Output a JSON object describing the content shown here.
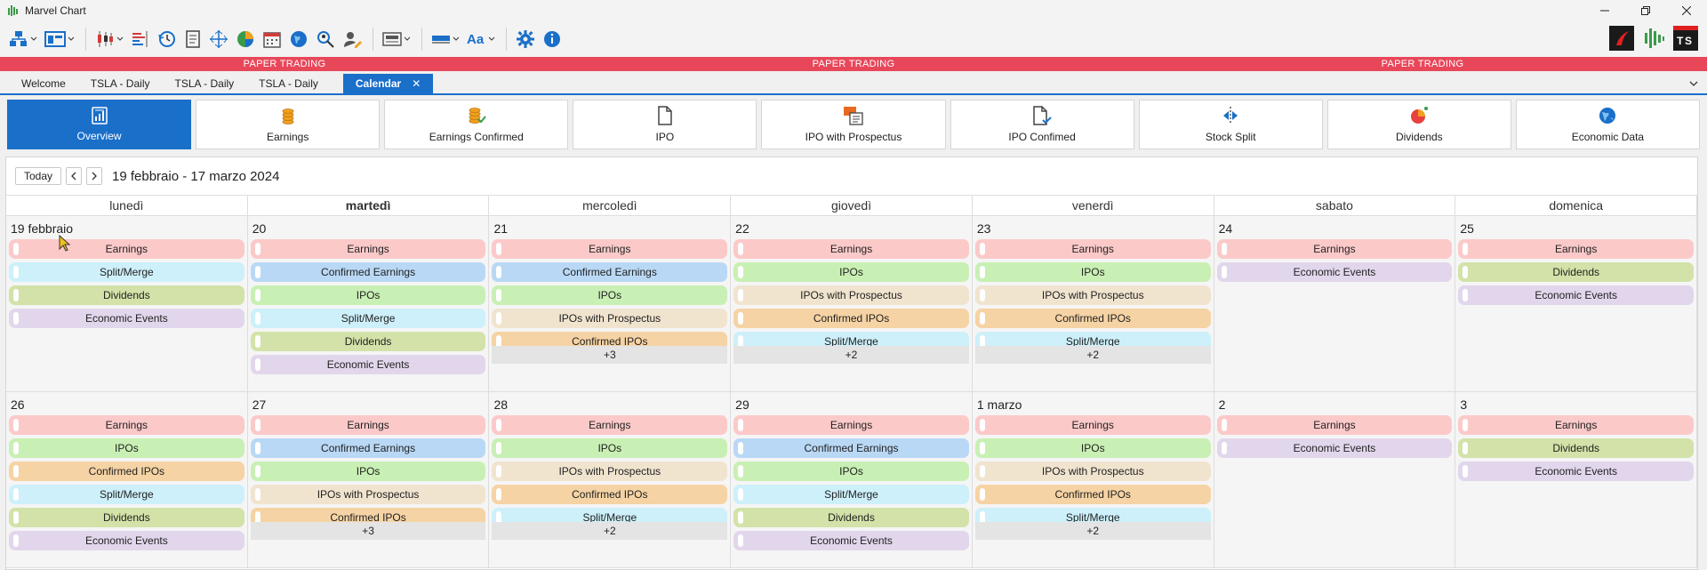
{
  "window": {
    "title": "Marvel Chart"
  },
  "paper_trading": [
    "PAPER TRADING",
    "PAPER TRADING",
    "PAPER TRADING"
  ],
  "tabs": [
    {
      "label": "Welcome"
    },
    {
      "label": "TSLA - Daily"
    },
    {
      "label": "TSLA - Daily"
    },
    {
      "label": "TSLA - Daily"
    },
    {
      "label": "Calendar",
      "close": "✕"
    }
  ],
  "categories": [
    {
      "label": "Overview",
      "icon": "overview-icon"
    },
    {
      "label": "Earnings",
      "icon": "earnings-icon"
    },
    {
      "label": "Earnings Confirmed",
      "icon": "earnings-confirmed-icon"
    },
    {
      "label": "IPO",
      "icon": "document-icon"
    },
    {
      "label": "IPO with Prospectus",
      "icon": "prospectus-icon"
    },
    {
      "label": "IPO Confimed",
      "icon": "document-check-icon"
    },
    {
      "label": "Stock Split",
      "icon": "split-icon"
    },
    {
      "label": "Dividends",
      "icon": "pie-icon"
    },
    {
      "label": "Economic Data",
      "icon": "globe-icon"
    }
  ],
  "calendar": {
    "today_label": "Today",
    "prev": "‹",
    "next": "›",
    "range": "19 febbraio - 17 marzo 2024",
    "weekdays": [
      "lunedì",
      "martedì",
      "mercoledì",
      "giovedì",
      "venerdì",
      "sabato",
      "domenica"
    ],
    "weeks": [
      [
        {
          "num": "19 febbraio",
          "events": [
            "Earnings",
            "Split/Merge",
            "Dividends",
            "Economic Events"
          ],
          "more": ""
        },
        {
          "num": "20",
          "events": [
            "Earnings",
            "Confirmed Earnings",
            "IPOs",
            "Split/Merge",
            "Dividends",
            "Economic Events"
          ],
          "more": ""
        },
        {
          "num": "21",
          "events": [
            "Earnings",
            "Confirmed Earnings",
            "IPOs",
            "IPOs with Prospectus",
            "Confirmed IPOs"
          ],
          "more": "+3"
        },
        {
          "num": "22",
          "events": [
            "Earnings",
            "IPOs",
            "IPOs with Prospectus",
            "Confirmed IPOs",
            "Split/Merge"
          ],
          "more": "+2"
        },
        {
          "num": "23",
          "events": [
            "Earnings",
            "IPOs",
            "IPOs with Prospectus",
            "Confirmed IPOs",
            "Split/Merge"
          ],
          "more": "+2"
        },
        {
          "num": "24",
          "events": [
            "Earnings",
            "Economic Events"
          ],
          "more": ""
        },
        {
          "num": "25",
          "events": [
            "Earnings",
            "Dividends",
            "Economic Events"
          ],
          "more": ""
        }
      ],
      [
        {
          "num": "26",
          "events": [
            "Earnings",
            "IPOs",
            "Confirmed IPOs",
            "Split/Merge",
            "Dividends",
            "Economic Events"
          ],
          "more": ""
        },
        {
          "num": "27",
          "events": [
            "Earnings",
            "Confirmed Earnings",
            "IPOs",
            "IPOs with Prospectus",
            "Confirmed IPOs"
          ],
          "more": "+3"
        },
        {
          "num": "28",
          "events": [
            "Earnings",
            "IPOs",
            "IPOs with Prospectus",
            "Confirmed IPOs",
            "Split/Merge"
          ],
          "more": "+2"
        },
        {
          "num": "29",
          "events": [
            "Earnings",
            "Confirmed Earnings",
            "IPOs",
            "Split/Merge",
            "Dividends",
            "Economic Events"
          ],
          "more": ""
        },
        {
          "num": "1 marzo",
          "events": [
            "Earnings",
            "IPOs",
            "IPOs with Prospectus",
            "Confirmed IPOs",
            "Split/Merge"
          ],
          "more": "+2"
        },
        {
          "num": "2",
          "events": [
            "Earnings",
            "Economic Events"
          ],
          "more": ""
        },
        {
          "num": "3",
          "events": [
            "Earnings",
            "Dividends",
            "Economic Events"
          ],
          "more": ""
        }
      ]
    ]
  },
  "event_colors": {
    "Earnings": "#fcc9c9",
    "Confirmed Earnings": "#b9d8f5",
    "IPOs": "#c9f0b4",
    "IPOs with Prospectus": "#f1e4cf",
    "Confirmed IPOs": "#f6d3a4",
    "Split/Merge": "#cdf0fa",
    "Dividends": "#d3e2a8",
    "Economic Events": "#e2d6ec"
  },
  "colors": {
    "accent": "#1a6fc9",
    "paper_trading_bar": "#e8475a"
  }
}
